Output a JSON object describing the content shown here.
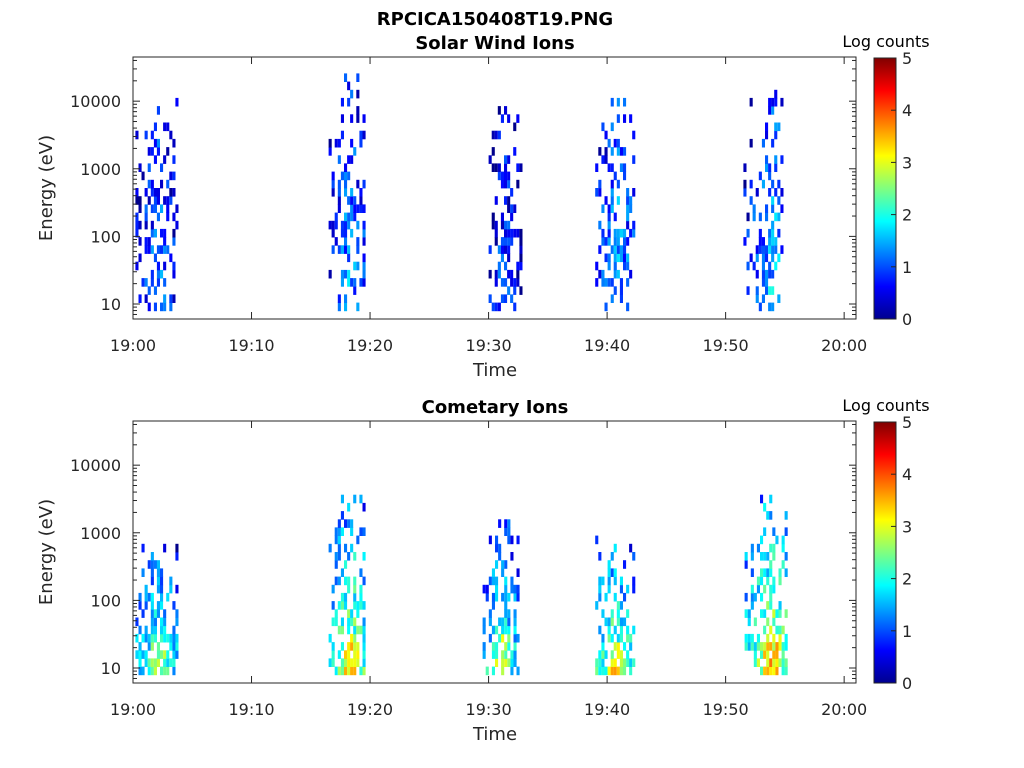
{
  "figure": {
    "title": "RPCICA150408T19.PNG"
  },
  "chart_data": [
    {
      "type": "heatmap",
      "title": "Solar Wind Ions",
      "xlabel": "Time",
      "ylabel": "Energy (eV)",
      "x_ticks": [
        "19:00",
        "19:10",
        "19:20",
        "19:30",
        "19:40",
        "19:50",
        "20:00"
      ],
      "y_ticks": [
        "10",
        "100",
        "1000",
        "10000"
      ],
      "y_scale": "log",
      "ylim": [
        6,
        45000
      ],
      "xlim": [
        "19:00",
        "20:01"
      ],
      "colorbar": {
        "label": "Log counts",
        "range": [
          0,
          5
        ],
        "ticks": [
          "0",
          "1",
          "2",
          "3",
          "4",
          "5"
        ],
        "colormap": "jet"
      },
      "bursts": [
        {
          "start_min": 0.2,
          "end_min": 3.6,
          "peak_min": 2.0,
          "e_low": 7,
          "e_high": 15000,
          "level": 1.2
        },
        {
          "start_min": 16.5,
          "end_min": 19.6,
          "peak_min": 18.2,
          "e_low": 8,
          "e_high": 24000,
          "level": 1.3
        },
        {
          "start_min": 30.0,
          "end_min": 32.8,
          "peak_min": 31.2,
          "e_low": 7,
          "e_high": 10000,
          "level": 1.0
        },
        {
          "start_min": 39.0,
          "end_min": 42.2,
          "peak_min": 40.8,
          "e_low": 8,
          "e_high": 15000,
          "level": 1.4
        },
        {
          "start_min": 51.5,
          "end_min": 54.8,
          "peak_min": 53.8,
          "e_low": 8,
          "e_high": 14000,
          "level": 1.5
        }
      ]
    },
    {
      "type": "heatmap",
      "title": "Cometary Ions",
      "xlabel": "Time",
      "ylabel": "Energy (eV)",
      "x_ticks": [
        "19:00",
        "19:10",
        "19:20",
        "19:30",
        "19:40",
        "19:50",
        "20:00"
      ],
      "y_ticks": [
        "10",
        "100",
        "1000",
        "10000"
      ],
      "y_scale": "log",
      "ylim": [
        6,
        45000
      ],
      "xlim": [
        "19:00",
        "20:01"
      ],
      "colorbar": {
        "label": "Log counts",
        "range": [
          0,
          5
        ],
        "ticks": [
          "0",
          "1",
          "2",
          "3",
          "4",
          "5"
        ],
        "colormap": "jet"
      },
      "bursts": [
        {
          "start_min": 0.2,
          "end_min": 3.8,
          "peak_min": 2.0,
          "e_low": 7,
          "e_high": 1000,
          "level": 2.2
        },
        {
          "start_min": 16.5,
          "end_min": 19.6,
          "peak_min": 18.3,
          "e_low": 7,
          "e_high": 3600,
          "level": 2.6
        },
        {
          "start_min": 29.5,
          "end_min": 32.6,
          "peak_min": 31.0,
          "e_low": 7,
          "e_high": 2200,
          "level": 2.2
        },
        {
          "start_min": 39.0,
          "end_min": 42.3,
          "peak_min": 40.5,
          "e_low": 7,
          "e_high": 1000,
          "level": 2.5
        },
        {
          "start_min": 51.6,
          "end_min": 55.0,
          "peak_min": 53.8,
          "e_low": 7,
          "e_high": 3900,
          "level": 2.8
        }
      ]
    }
  ]
}
